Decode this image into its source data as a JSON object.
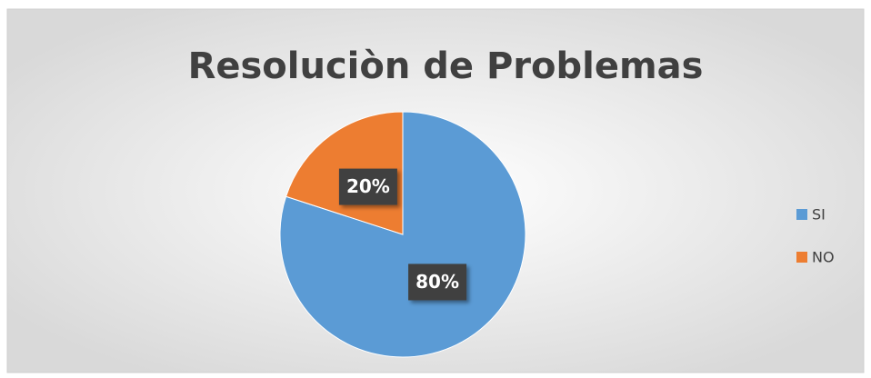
{
  "chart_data": {
    "type": "pie",
    "title": "Resoluciòn de Problemas",
    "categories": [
      "SI",
      "NO"
    ],
    "values": [
      80,
      20
    ],
    "value_labels": [
      "80%",
      "20%"
    ],
    "colors": [
      "#5b9bd5",
      "#ed7d31"
    ],
    "legend": "right"
  }
}
